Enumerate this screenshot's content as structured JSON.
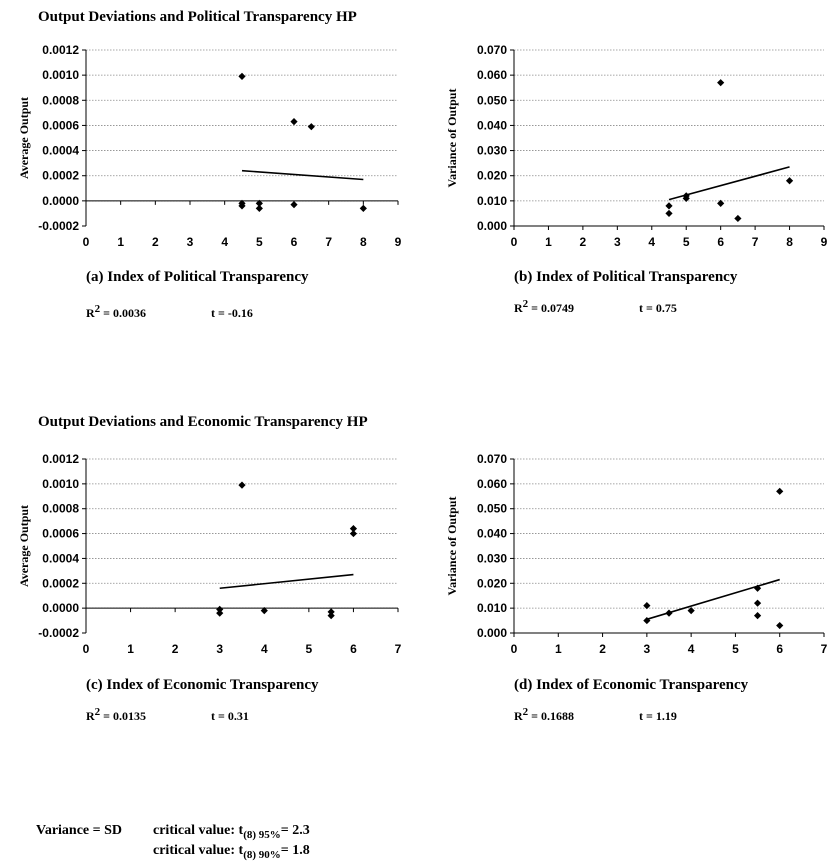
{
  "sections": {
    "political_title": "Output Deviations and Political Transparency HP",
    "economic_title": "Output Deviations and Economic Transparency HP"
  },
  "chart_data": [
    {
      "id": "a",
      "type": "scatter",
      "title": "",
      "xlabel": "(a) Index of Political Transparency",
      "ylabel": "Average Output",
      "xlim": [
        0,
        9
      ],
      "ylim": [
        -0.0002,
        0.0012
      ],
      "xticks": [
        "0",
        "1",
        "2",
        "3",
        "4",
        "5",
        "6",
        "7",
        "8",
        "9"
      ],
      "yticks": [
        "-0.0002",
        "0.0000",
        "0.0002",
        "0.0004",
        "0.0006",
        "0.0008",
        "0.0010",
        "0.0012"
      ],
      "grid": true,
      "points": [
        [
          4.5,
          0.00099
        ],
        [
          6,
          0.00063
        ],
        [
          6.5,
          0.00059
        ],
        [
          4.5,
          -2e-05
        ],
        [
          4.5,
          -4e-05
        ],
        [
          5,
          -2e-05
        ],
        [
          5,
          -6e-05
        ],
        [
          6,
          -3e-05
        ],
        [
          8,
          -6e-05
        ]
      ],
      "trendline": [
        [
          4.5,
          0.00024
        ],
        [
          8,
          0.00017
        ]
      ],
      "stats": {
        "r2_label": "R",
        "r2_sup": "2",
        "r2_value": " = 0.0036",
        "t_text": "t = -0.16"
      }
    },
    {
      "id": "b",
      "type": "scatter",
      "title": "",
      "xlabel": "(b) Index of Political Transparency",
      "ylabel": "Variance of Output",
      "xlim": [
        0,
        9
      ],
      "ylim": [
        0,
        0.07
      ],
      "xticks": [
        "0",
        "1",
        "2",
        "3",
        "4",
        "5",
        "6",
        "7",
        "8",
        "9"
      ],
      "yticks": [
        "0.000",
        "0.010",
        "0.020",
        "0.030",
        "0.040",
        "0.050",
        "0.060",
        "0.070"
      ],
      "grid": true,
      "points": [
        [
          6,
          0.057
        ],
        [
          4.5,
          0.008
        ],
        [
          4.5,
          0.005
        ],
        [
          5,
          0.011
        ],
        [
          5,
          0.012
        ],
        [
          6,
          0.009
        ],
        [
          6.5,
          0.003
        ],
        [
          8,
          0.018
        ]
      ],
      "trendline": [
        [
          4.5,
          0.0105
        ],
        [
          8,
          0.0235
        ]
      ],
      "stats": {
        "r2_label": "R",
        "r2_sup": "2",
        "r2_value": " = 0.0749",
        "t_text": "t = 0.75"
      }
    },
    {
      "id": "c",
      "type": "scatter",
      "title": "",
      "xlabel": "(c) Index of Economic Transparency",
      "ylabel": "Average Output",
      "xlim": [
        0,
        7
      ],
      "ylim": [
        -0.0002,
        0.0012
      ],
      "xticks": [
        "0",
        "1",
        "2",
        "3",
        "4",
        "5",
        "6",
        "7"
      ],
      "yticks": [
        "-0.0002",
        "0.0000",
        "0.0002",
        "0.0004",
        "0.0006",
        "0.0008",
        "0.0010",
        "0.0012"
      ],
      "grid": true,
      "points": [
        [
          3.5,
          0.00099
        ],
        [
          6,
          0.00064
        ],
        [
          6,
          0.0006
        ],
        [
          3,
          -1e-05
        ],
        [
          3,
          -4e-05
        ],
        [
          4,
          -2e-05
        ],
        [
          5.5,
          -3e-05
        ],
        [
          5.5,
          -6e-05
        ]
      ],
      "trendline": [
        [
          3,
          0.00016
        ],
        [
          6,
          0.00027
        ]
      ],
      "stats": {
        "r2_label": "R",
        "r2_sup": "2",
        "r2_value": " = 0.0135",
        "t_text": "t = 0.31"
      }
    },
    {
      "id": "d",
      "type": "scatter",
      "title": "",
      "xlabel": "(d) Index of Economic Transparency",
      "ylabel": "Variance of Output",
      "xlim": [
        0,
        7
      ],
      "ylim": [
        0,
        0.07
      ],
      "xticks": [
        "0",
        "1",
        "2",
        "3",
        "4",
        "5",
        "6",
        "7"
      ],
      "yticks": [
        "0.000",
        "0.010",
        "0.020",
        "0.030",
        "0.040",
        "0.050",
        "0.060",
        "0.070"
      ],
      "grid": true,
      "points": [
        [
          6,
          0.057
        ],
        [
          3,
          0.011
        ],
        [
          3,
          0.005
        ],
        [
          3.5,
          0.008
        ],
        [
          4,
          0.009
        ],
        [
          5.5,
          0.018
        ],
        [
          5.5,
          0.012
        ],
        [
          5.5,
          0.007
        ],
        [
          6,
          0.003
        ]
      ],
      "trendline": [
        [
          3,
          0.0055
        ],
        [
          6,
          0.0215
        ]
      ],
      "stats": {
        "r2_label": "R",
        "r2_sup": "2",
        "r2_value": " = 0.1688",
        "t_text": "t = 1.19"
      }
    }
  ],
  "footnote": {
    "variance_label": "Variance = SD",
    "crit_label": "critical value: t",
    "crit1_sub": "(8) 95%",
    "crit1_value": "= 2.3",
    "crit2_sub": "(8) 90%",
    "crit2_value": "= 1.8"
  }
}
